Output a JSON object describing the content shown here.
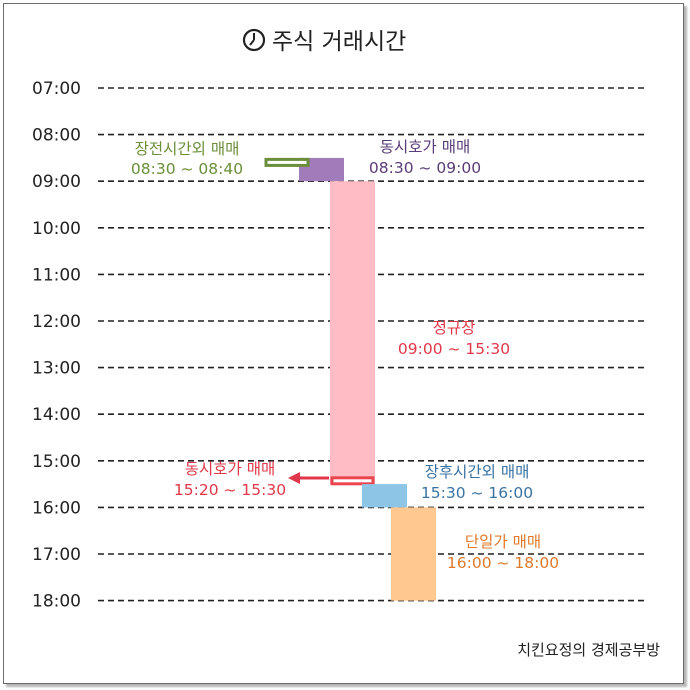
{
  "title": "주식 거래시간",
  "footer": "치킨요정의 경제공부방",
  "chart_data": {
    "type": "diagram",
    "times": [
      "07:00",
      "08:00",
      "09:00",
      "10:00",
      "11:00",
      "12:00",
      "13:00",
      "14:00",
      "15:00",
      "16:00",
      "17:00",
      "18:00"
    ],
    "sessions": [
      {
        "name": "장전시간외 매매",
        "time": "08:30 ~ 08:40",
        "start": 8.5,
        "end": 8.667,
        "color": "#6b8e3a"
      },
      {
        "name": "동시호가 매매",
        "time": "08:30 ~ 09:00",
        "start": 8.5,
        "end": 9.0,
        "color": "#a07cba"
      },
      {
        "name": "정규장",
        "time": "09:00 ~ 15:30",
        "start": 9.0,
        "end": 15.5,
        "color": "#ffbcc4"
      },
      {
        "name": "동시호가 매매",
        "time": "15:20 ~ 15:30",
        "start": 15.333,
        "end": 15.5,
        "color": "#e8454f"
      },
      {
        "name": "장후시간외 매매",
        "time": "15:30 ~ 16:00",
        "start": 15.5,
        "end": 16.0,
        "color": "#8cc5e6"
      },
      {
        "name": "단일가 매매",
        "time": "16:00 ~ 18:00",
        "start": 16.0,
        "end": 18.0,
        "color": "#ffc890"
      }
    ],
    "label_colors": [
      "#6b8e3a",
      "#5a3d77",
      "#e0384a",
      "#e0384a",
      "#3a73a3",
      "#e07a2a"
    ]
  }
}
